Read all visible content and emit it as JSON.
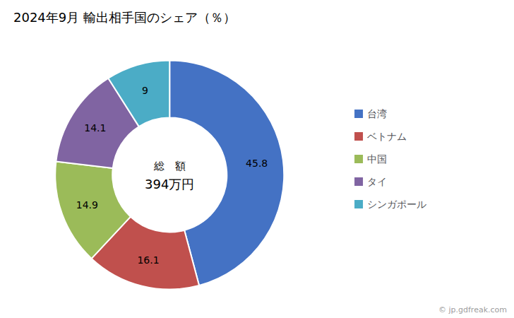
{
  "chart_data": {
    "type": "pie",
    "title": "2024年9月 輸出相手国のシェア（％）",
    "categories": [
      "台湾",
      "ベトナム",
      "中国",
      "タイ",
      "シンガポール"
    ],
    "values": [
      45.8,
      16.1,
      14.9,
      14.1,
      9.0
    ],
    "colors": [
      "#4472C4",
      "#C0504D",
      "#9BBB59",
      "#8064A2",
      "#4BACC6"
    ],
    "data_labels": true,
    "legend": "right",
    "annotations": [
      "総　額",
      "394万円",
      "© jp.gdfreak.com"
    ]
  }
}
